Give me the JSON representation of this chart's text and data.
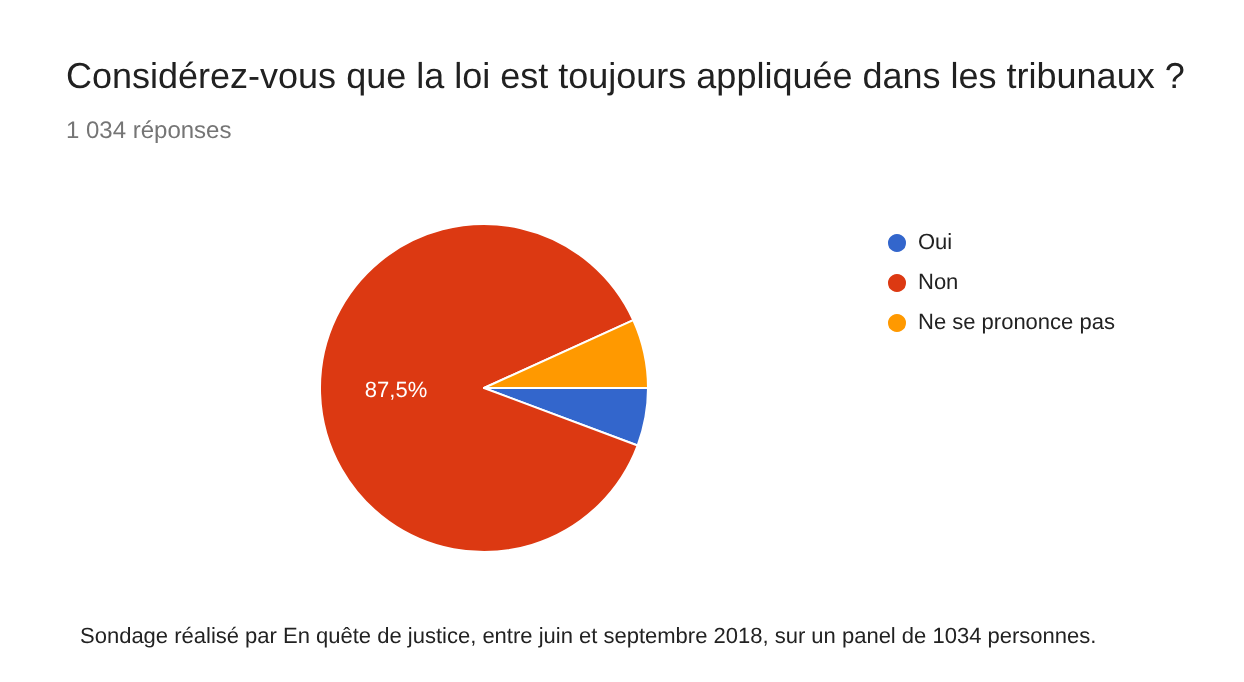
{
  "chart_data": {
    "type": "pie",
    "title": "Considérez-vous que la loi est toujours appliquée dans les tribunaux ?",
    "subtitle": "1 034 réponses",
    "categories": [
      "Oui",
      "Non",
      "Ne se prononce pas"
    ],
    "values": [
      5.7,
      87.5,
      6.8
    ],
    "colors": [
      "#3366cc",
      "#dc3912",
      "#ff9900"
    ],
    "value_labels": [
      null,
      "87,5%",
      null
    ],
    "legend": "right",
    "annotations": [
      "Sondage réalisé par En quête de justice, entre juin et septembre 2018, sur un panel de 1034 personnes."
    ]
  }
}
